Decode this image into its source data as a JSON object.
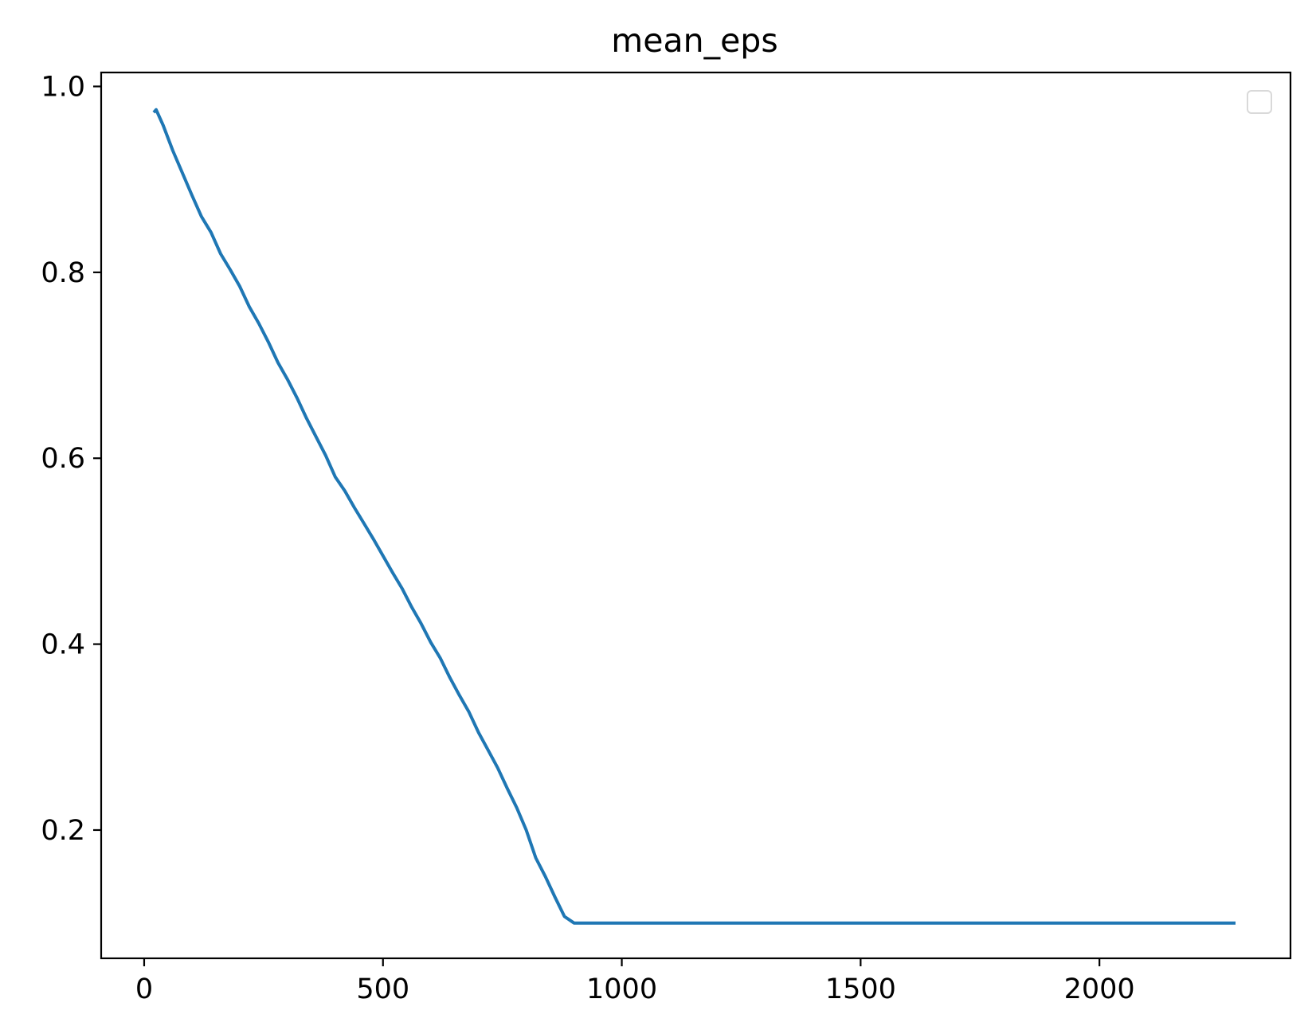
{
  "chart_data": {
    "type": "line",
    "title": "mean_eps",
    "xlabel": "",
    "ylabel": "",
    "xlim": [
      -90,
      2400
    ],
    "ylim": [
      0.062,
      1.015
    ],
    "x_ticks": [
      0,
      500,
      1000,
      1500,
      2000
    ],
    "x_tick_labels": [
      "0",
      "500",
      "1000",
      "1500",
      "2000"
    ],
    "y_ticks": [
      0.2,
      0.4,
      0.6,
      0.8,
      1.0
    ],
    "y_tick_labels": [
      "0.2",
      "0.4",
      "0.6",
      "0.8",
      "1.0"
    ],
    "grid": false,
    "legend": {
      "placement": "top-right",
      "entries": []
    },
    "series": [
      {
        "color": "#1f77b4",
        "x": [
          20,
          25,
          40,
          60,
          80,
          100,
          120,
          140,
          160,
          180,
          200,
          220,
          240,
          260,
          280,
          300,
          320,
          340,
          360,
          380,
          400,
          420,
          440,
          460,
          480,
          500,
          520,
          540,
          560,
          580,
          600,
          620,
          640,
          660,
          680,
          700,
          720,
          740,
          760,
          780,
          800,
          820,
          840,
          860,
          880,
          900,
          920,
          940,
          960,
          980,
          990,
          1000,
          1010,
          1020,
          1100,
          1200,
          1400,
          1600,
          1800,
          2000,
          2200,
          2285
        ],
        "y": [
          0.972,
          0.975,
          0.958,
          0.931,
          0.907,
          0.883,
          0.86,
          0.843,
          0.82,
          0.803,
          0.785,
          0.763,
          0.745,
          0.725,
          0.703,
          0.685,
          0.665,
          0.643,
          0.623,
          0.603,
          0.58,
          0.565,
          0.547,
          0.53,
          0.513,
          0.495,
          0.477,
          0.46,
          0.44,
          0.422,
          0.402,
          0.385,
          0.364,
          0.345,
          0.327,
          0.305,
          0.286,
          0.267,
          0.245,
          0.224,
          0.2,
          0.17,
          0.15,
          0.128,
          0.107,
          0.1,
          0.1,
          0.1,
          0.1,
          0.1,
          0.1,
          0.1,
          0.1,
          0.1,
          0.1,
          0.1,
          0.1,
          0.1,
          0.1,
          0.1,
          0.1,
          0.1
        ]
      }
    ]
  }
}
